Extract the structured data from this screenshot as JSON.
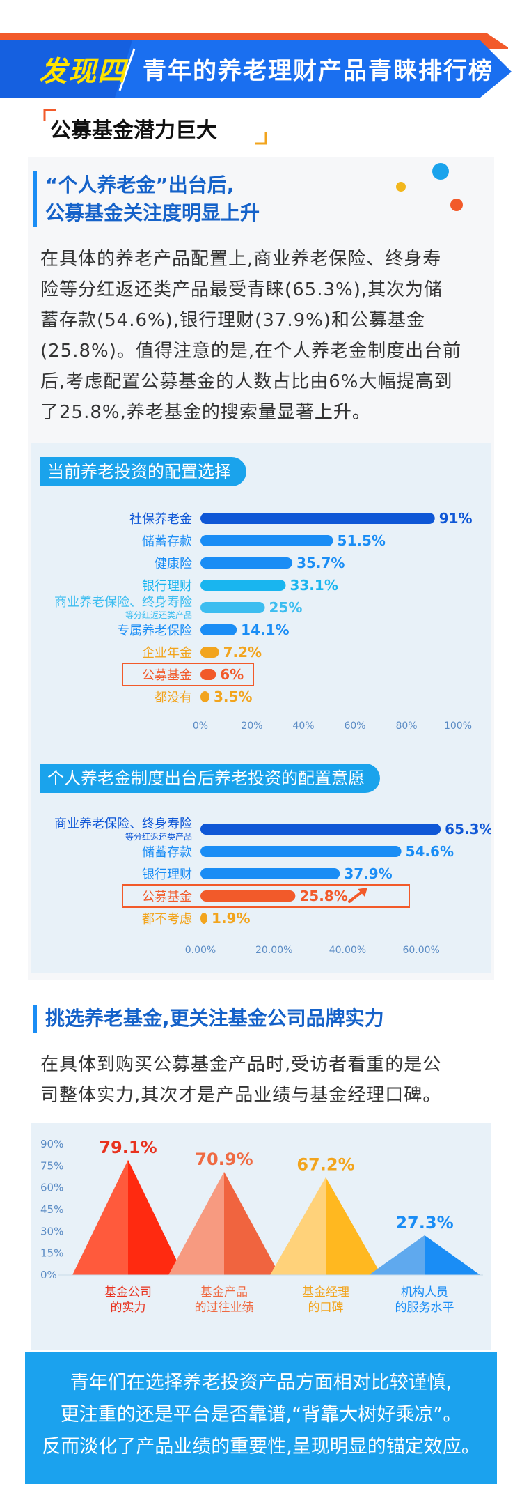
{
  "header": {
    "tag": "发现四",
    "title": "青年的养老理财产品青睐排行榜"
  },
  "section_title": "公募基金潜力巨大",
  "part1": {
    "heading_line1": "“个人养老金”出台后,",
    "heading_line2": "公募基金关注度明显上升",
    "paragraph": [
      "在具体的养老产品配置上,商业养老保险、终身寿",
      "险等分红返还类产品最受青睐(65.3%),其次为储",
      "蓄存款(54.6%),银行理财(37.9%)和公募基金",
      "(25.8%)。值得注意的是,在个人养老金制度出台前",
      "后,考虑配置公募基金的人数占比由6%大幅提高到",
      "了25.8%,养老基金的搜索量显著上升。"
    ]
  },
  "part2": {
    "heading": "挑选养老基金,更关注基金公司品牌实力",
    "paragraph": [
      "在具体到购买公募基金产品时,受访者看重的是公",
      "司整体实力,其次才是产品业绩与基金经理口碑。"
    ]
  },
  "footer": [
    "青年们在选择养老投资产品方面相对比较谨慎,",
    "更注重的还是平台是否靠谱,“背靠大树好乘凉”。",
    "反而淡化了产品业绩的重要性,呈现明显的锚定效应。"
  ],
  "colors": {
    "dark_blue": "#0f57d6",
    "blue": "#1a8df5",
    "cyan": "#19b5ef",
    "orange": "#f2a41d",
    "red_orange": "#f25a2a",
    "banner_blue": "#1a6ff0"
  },
  "chart_data": [
    {
      "type": "bar",
      "title": "当前养老投资的配置选择",
      "categories": [
        "社保养老金",
        "储蓄存款",
        "健康险",
        "银行理财",
        "商业养老保险、终身寿险",
        "专属养老保险",
        "企业年金",
        "公募基金",
        "都没有"
      ],
      "category_notes": [
        "",
        "",
        "",
        "",
        "等分红返还类产品",
        "",
        "",
        "",
        ""
      ],
      "values": [
        91,
        51.5,
        35.7,
        33.1,
        25,
        14.1,
        7.2,
        6,
        3.5
      ],
      "value_labels": [
        "91%",
        "51.5%",
        "35.7%",
        "33.1%",
        "25%",
        "14.1%",
        "7.2%",
        "6%",
        "3.5%"
      ],
      "xticks": [
        "0%",
        "20%",
        "40%",
        "60%",
        "80%",
        "100%"
      ],
      "xlim": [
        0,
        100
      ],
      "highlight": "公募基金"
    },
    {
      "type": "bar",
      "title": "个人养老金制度出台后养老投资的配置意愿",
      "categories": [
        "商业养老保险、终身寿险",
        "储蓄存款",
        "银行理财",
        "公募基金",
        "都不考虑"
      ],
      "category_notes": [
        "等分红返还类产品",
        "",
        "",
        "",
        ""
      ],
      "values": [
        65.3,
        54.6,
        37.9,
        25.8,
        1.9
      ],
      "value_labels": [
        "65.3%",
        "54.6%",
        "37.9%",
        "25.8%",
        "1.9%"
      ],
      "xticks": [
        "0.00%",
        "20.00%",
        "40.00%",
        "60.00%"
      ],
      "xlim": [
        0,
        70
      ],
      "highlight": "公募基金"
    },
    {
      "type": "bar",
      "categories": [
        "基金公司的实力",
        "基金产品的过往业绩",
        "基金经理的口碑",
        "机构人员的服务水平"
      ],
      "category_lines": [
        [
          "基金公司",
          "的实力"
        ],
        [
          "基金产品",
          "的过往业绩"
        ],
        [
          "基金经理",
          "的口碑"
        ],
        [
          "机构人员",
          "的服务水平"
        ]
      ],
      "values": [
        79.1,
        70.9,
        67.2,
        27.3
      ],
      "value_labels": [
        "79.1%",
        "70.9%",
        "67.2%",
        "27.3%"
      ],
      "yticks": [
        "0%",
        "15%",
        "30%",
        "45%",
        "60%",
        "75%",
        "90%"
      ],
      "ylim": [
        0,
        90
      ]
    }
  ]
}
